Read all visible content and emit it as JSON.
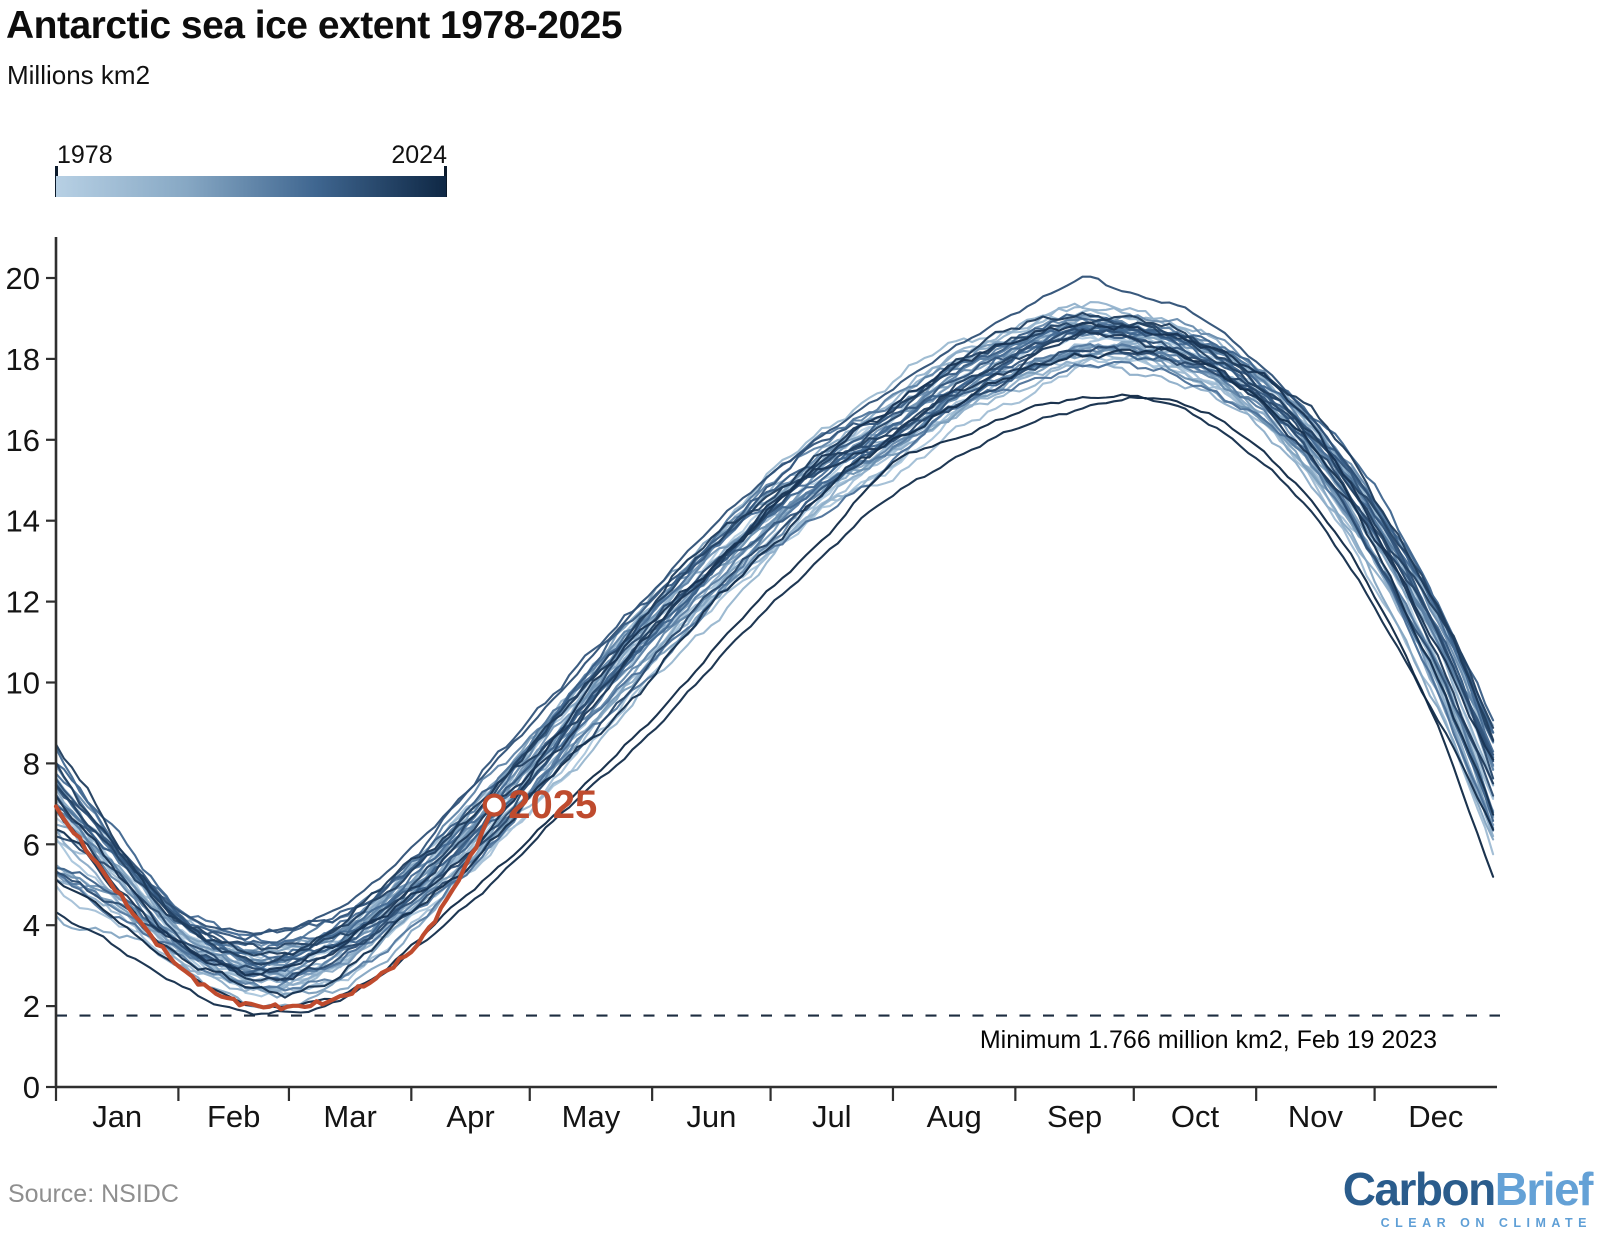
{
  "header": {
    "title": "Antarctic sea ice extent 1978-2025",
    "subtitle": "Millions km2"
  },
  "legend": {
    "start_label": "1978",
    "end_label": "2024",
    "gradient_stops": [
      "#b7d0e4",
      "#87a8c4",
      "#3f6690",
      "#0f2845"
    ]
  },
  "chart_data": {
    "type": "line",
    "title": "Antarctic sea ice extent 1978-2025",
    "ylabel": "Millions km2",
    "xlabel": "",
    "grid": false,
    "y_axis": {
      "min": 0,
      "max": 20,
      "tick_step": 2
    },
    "x_axis": {
      "unit": "day of year",
      "months": [
        {
          "label": "Jan",
          "days": 31
        },
        {
          "label": "Feb",
          "days": 28
        },
        {
          "label": "Mar",
          "days": 31
        },
        {
          "label": "Apr",
          "days": 30
        },
        {
          "label": "May",
          "days": 31
        },
        {
          "label": "Jun",
          "days": 30
        },
        {
          "label": "Jul",
          "days": 31
        },
        {
          "label": "Aug",
          "days": 31
        },
        {
          "label": "Sep",
          "days": 30
        },
        {
          "label": "Oct",
          "days": 31
        },
        {
          "label": "Nov",
          "days": 30
        },
        {
          "label": "Dec",
          "days": 31
        }
      ]
    },
    "series_years": {
      "start": 1978,
      "end": 2024,
      "count": 47,
      "color_scale": [
        "#b7d0e4",
        "#0f2845"
      ]
    },
    "climatology_points": [
      [
        0,
        6.6
      ],
      [
        15,
        5.2
      ],
      [
        31,
        3.7
      ],
      [
        45,
        3.05
      ],
      [
        52,
        2.9
      ],
      [
        59,
        2.95
      ],
      [
        74,
        3.5
      ],
      [
        90,
        4.8
      ],
      [
        105,
        6.2
      ],
      [
        120,
        7.8
      ],
      [
        135,
        9.5
      ],
      [
        151,
        11.2
      ],
      [
        166,
        12.7
      ],
      [
        181,
        14.1
      ],
      [
        196,
        15.3
      ],
      [
        212,
        16.3
      ],
      [
        227,
        17.3
      ],
      [
        243,
        18.0
      ],
      [
        258,
        18.5
      ],
      [
        273,
        18.5
      ],
      [
        288,
        18.1
      ],
      [
        304,
        17.2
      ],
      [
        319,
        15.8
      ],
      [
        334,
        13.7
      ],
      [
        350,
        10.8
      ],
      [
        365,
        7.2
      ]
    ],
    "spread_points": [
      [
        0,
        2.2
      ],
      [
        31,
        0.95
      ],
      [
        59,
        0.95
      ],
      [
        90,
        1.15
      ],
      [
        120,
        1.3
      ],
      [
        151,
        1.2
      ],
      [
        181,
        1.1
      ],
      [
        212,
        1.1
      ],
      [
        243,
        0.95
      ],
      [
        273,
        0.8
      ],
      [
        304,
        0.85
      ],
      [
        334,
        1.3
      ],
      [
        365,
        2.2
      ]
    ],
    "notable_series": {
      "2014": [
        [
          0,
          7.7
        ],
        [
          15,
          6.2
        ],
        [
          31,
          4.4
        ],
        [
          45,
          3.85
        ],
        [
          59,
          3.9
        ],
        [
          75,
          4.6
        ],
        [
          90,
          5.8
        ],
        [
          105,
          7.3
        ],
        [
          120,
          9.0
        ],
        [
          135,
          10.7
        ],
        [
          151,
          12.3
        ],
        [
          166,
          13.8
        ],
        [
          181,
          15.1
        ],
        [
          196,
          16.2
        ],
        [
          212,
          17.2
        ],
        [
          227,
          18.2
        ],
        [
          243,
          19.2
        ],
        [
          252,
          19.7
        ],
        [
          261,
          20.1
        ],
        [
          268,
          19.8
        ],
        [
          273,
          19.6
        ],
        [
          288,
          19.1
        ],
        [
          304,
          17.9
        ],
        [
          319,
          16.4
        ],
        [
          334,
          14.3
        ],
        [
          350,
          11.2
        ],
        [
          365,
          8.0
        ]
      ],
      "2023": [
        [
          0,
          4.55
        ],
        [
          10,
          3.9
        ],
        [
          20,
          3.1
        ],
        [
          31,
          2.5
        ],
        [
          40,
          2.05
        ],
        [
          50,
          1.766
        ],
        [
          58,
          1.8
        ],
        [
          66,
          1.95
        ],
        [
          75,
          2.45
        ],
        [
          90,
          3.35
        ],
        [
          105,
          4.55
        ],
        [
          120,
          5.9
        ],
        [
          135,
          7.3
        ],
        [
          151,
          8.9
        ],
        [
          166,
          10.4
        ],
        [
          181,
          11.9
        ],
        [
          196,
          13.2
        ],
        [
          212,
          14.6
        ],
        [
          227,
          15.6
        ],
        [
          243,
          16.3
        ],
        [
          258,
          16.75
        ],
        [
          273,
          16.95
        ],
        [
          288,
          16.6
        ],
        [
          304,
          15.6
        ],
        [
          319,
          14.1
        ],
        [
          334,
          11.9
        ],
        [
          350,
          8.9
        ],
        [
          365,
          6.1
        ]
      ],
      "2024": [
        [
          0,
          5.1
        ],
        [
          10,
          4.4
        ],
        [
          20,
          3.6
        ],
        [
          31,
          2.95
        ],
        [
          42,
          2.35
        ],
        [
          52,
          2.0
        ],
        [
          60,
          2.05
        ],
        [
          70,
          2.3
        ],
        [
          80,
          2.75
        ],
        [
          90,
          3.45
        ],
        [
          105,
          4.75
        ],
        [
          120,
          6.1
        ],
        [
          135,
          7.5
        ],
        [
          151,
          9.2
        ],
        [
          166,
          10.8
        ],
        [
          181,
          12.3
        ],
        [
          196,
          13.7
        ],
        [
          212,
          15.3
        ],
        [
          227,
          16.0
        ],
        [
          243,
          16.7
        ],
        [
          258,
          17.05
        ],
        [
          273,
          17.15
        ],
        [
          288,
          16.75
        ],
        [
          304,
          15.8
        ],
        [
          319,
          14.3
        ],
        [
          334,
          12.1
        ],
        [
          350,
          9.1
        ],
        [
          365,
          4.95
        ]
      ]
    },
    "series_2025": {
      "label": "2025",
      "color": "#bf4b2e",
      "points": [
        [
          0,
          6.9
        ],
        [
          6,
          6.1
        ],
        [
          12,
          5.3
        ],
        [
          18,
          4.5
        ],
        [
          24,
          3.75
        ],
        [
          31,
          3.0
        ],
        [
          36,
          2.6
        ],
        [
          41,
          2.3
        ],
        [
          46,
          2.1
        ],
        [
          52,
          2.0
        ],
        [
          58,
          1.98
        ],
        [
          64,
          2.02
        ],
        [
          70,
          2.15
        ],
        [
          76,
          2.4
        ],
        [
          82,
          2.75
        ],
        [
          88,
          3.2
        ],
        [
          90,
          3.35
        ],
        [
          95,
          4.0
        ],
        [
          100,
          4.8
        ],
        [
          104,
          5.5
        ],
        [
          108,
          6.3
        ],
        [
          111,
          6.97
        ]
      ]
    },
    "reference_line": {
      "value": 1.766,
      "style": "dashed",
      "color": "#1d2d40",
      "label": "Minimum 1.766 million km2, Feb 19 2023"
    }
  },
  "footer": {
    "source": "Source: NSIDC"
  },
  "logo": {
    "part1": "Carbon",
    "part2": "Brief",
    "tagline": "CLEAR ON CLIMATE",
    "color1": "#2a5c8c",
    "color2": "#64a1d6"
  }
}
